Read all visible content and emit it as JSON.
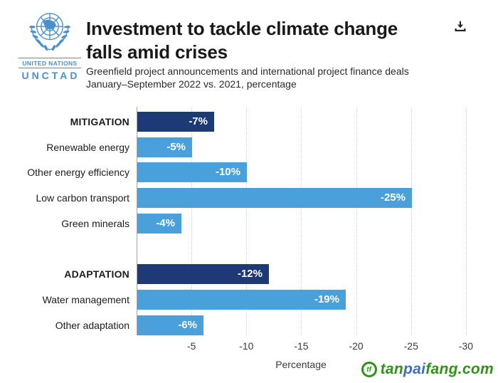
{
  "header": {
    "logo": {
      "org": "UNITED NATIONS",
      "name": "UNCTAD",
      "color": "#4a90cf"
    },
    "title_line1": "Investment to tackle climate change",
    "title_line2": "falls amid crises",
    "subtitle_line1": "Greenfield project announcements and international project finance deals",
    "subtitle_line2": "January–September 2022 vs. 2021, percentage"
  },
  "chart_data": {
    "type": "bar",
    "orientation": "horizontal",
    "title": "Investment to tackle climate change falls amid crises",
    "categories": [
      "MITIGATION",
      "Renewable energy",
      "Other energy efficiency",
      "Low carbon transport",
      "Green minerals",
      "ADAPTATION",
      "Water management",
      "Other adaptation"
    ],
    "values": [
      -7,
      -5,
      -10,
      -25,
      -4,
      -12,
      -19,
      -6
    ],
    "value_labels": [
      "-7%",
      "-5%",
      "-10%",
      "-25%",
      "-4%",
      "-12%",
      "-19%",
      "-6%"
    ],
    "is_group_header": [
      true,
      false,
      false,
      false,
      false,
      true,
      false,
      false
    ],
    "group_gap_before_index": 5,
    "xlabel": "Percentage",
    "x_ticks": [
      -5,
      -10,
      -15,
      -20,
      -25,
      -30
    ],
    "xlim": [
      0,
      -30.5
    ],
    "grid": true,
    "legend": "none",
    "colors": {
      "group_bar": "#1e3a76",
      "item_bar": "#4aa0db",
      "value_label": "#ffffff"
    }
  },
  "watermark": {
    "logo_monogram": "tf",
    "parts": [
      {
        "text": "tan",
        "color": "#2f9414"
      },
      {
        "text": "pai",
        "color": "#3f6bcb"
      },
      {
        "text": "fang.com",
        "color": "#2f9414"
      }
    ]
  }
}
